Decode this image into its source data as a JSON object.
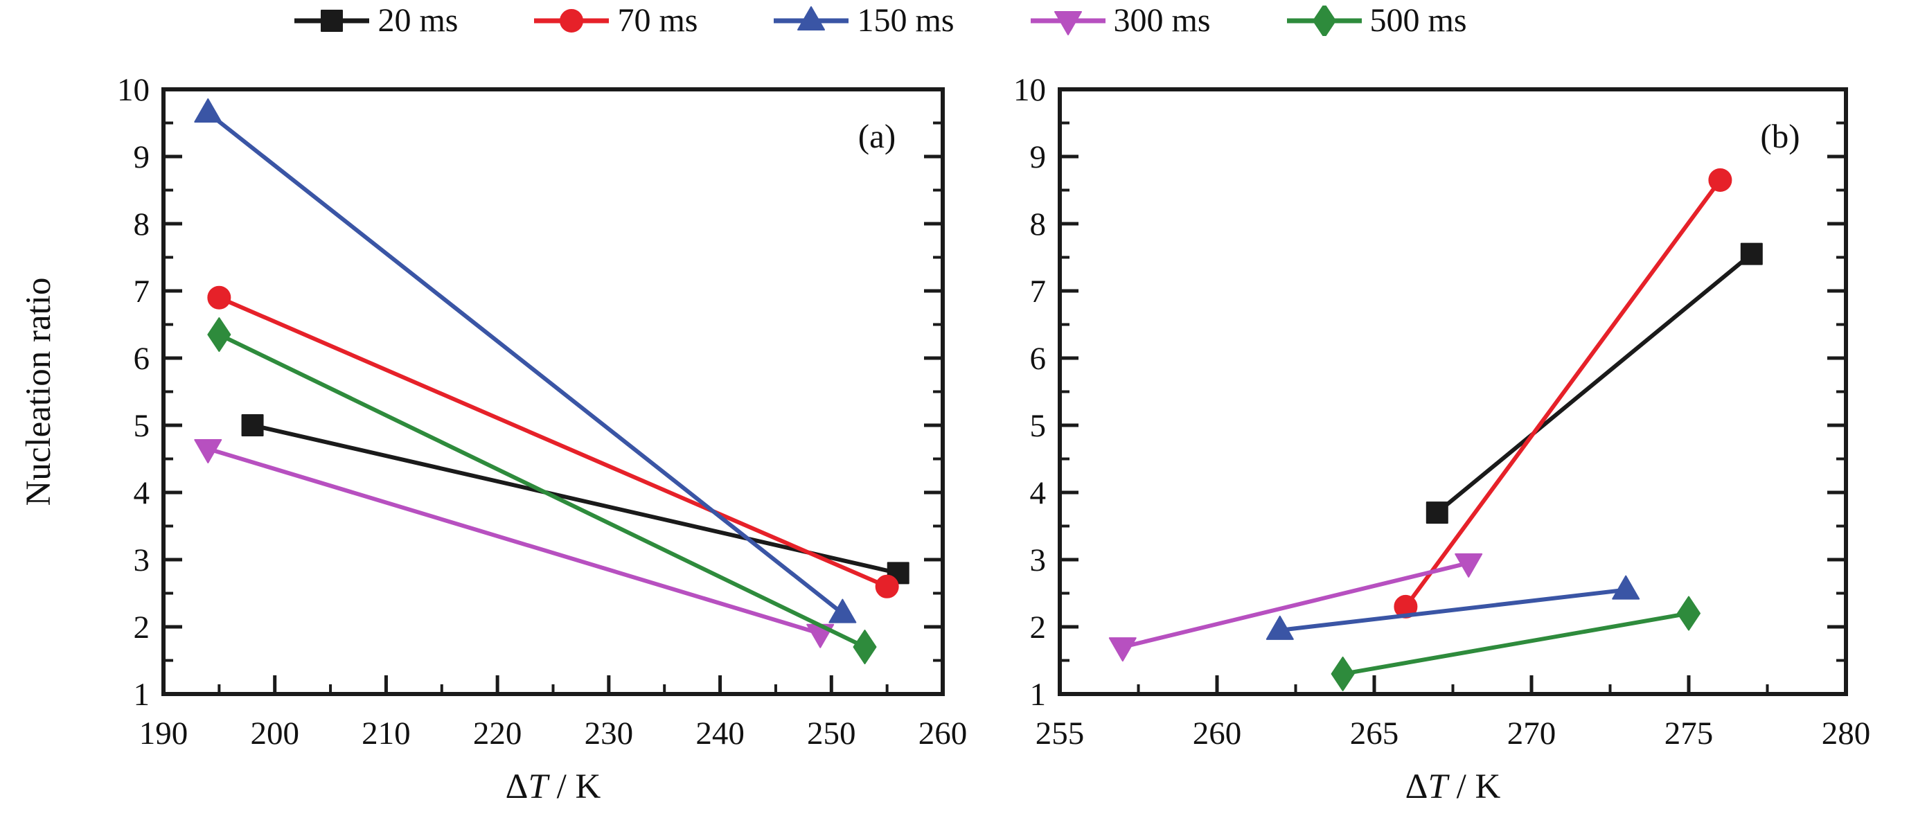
{
  "figure": {
    "background": "#ffffff",
    "axis_color": "#1a1a1a"
  },
  "legend": {
    "items": [
      {
        "label": "20 ms",
        "marker": "square",
        "color": "#1a1a1a"
      },
      {
        "label": "70 ms",
        "marker": "circle",
        "color": "#e62129"
      },
      {
        "label": "150 ms",
        "marker": "triangle-up",
        "color": "#3a55a5"
      },
      {
        "label": "300 ms",
        "marker": "triangle-down",
        "color": "#b750c0"
      },
      {
        "label": "500 ms",
        "marker": "diamond",
        "color": "#2e8b3c"
      }
    ]
  },
  "chart_data": [
    {
      "type": "line",
      "panel_tag": "(a)",
      "xlabel": "ΔT / K",
      "ylabel": "Nucleation ratio",
      "xlim": [
        190,
        260
      ],
      "ylim": [
        1,
        10
      ],
      "x_major_ticks": [
        190,
        200,
        210,
        220,
        230,
        240,
        250,
        260
      ],
      "x_minor_step": 5,
      "y_major_ticks": [
        1,
        2,
        3,
        4,
        5,
        6,
        7,
        8,
        9,
        10
      ],
      "y_minor_step": 0.5,
      "grid": false,
      "series": [
        {
          "name": "20 ms",
          "marker": "square",
          "color": "#1a1a1a",
          "points": [
            [
              198,
              5.0
            ],
            [
              256,
              2.8
            ]
          ]
        },
        {
          "name": "70 ms",
          "marker": "circle",
          "color": "#e62129",
          "points": [
            [
              195,
              6.9
            ],
            [
              255,
              2.6
            ]
          ]
        },
        {
          "name": "150 ms",
          "marker": "triangle-up",
          "color": "#3a55a5",
          "points": [
            [
              194,
              9.65
            ],
            [
              251,
              2.2
            ]
          ]
        },
        {
          "name": "300 ms",
          "marker": "triangle-down",
          "color": "#b750c0",
          "points": [
            [
              194,
              4.65
            ],
            [
              249,
              1.9
            ]
          ]
        },
        {
          "name": "500 ms",
          "marker": "diamond",
          "color": "#2e8b3c",
          "points": [
            [
              195,
              6.35
            ],
            [
              253,
              1.7
            ]
          ]
        }
      ]
    },
    {
      "type": "line",
      "panel_tag": "(b)",
      "xlabel": "ΔT / K",
      "ylabel": "",
      "xlim": [
        255,
        280
      ],
      "ylim": [
        1,
        10
      ],
      "x_major_ticks": [
        255,
        260,
        265,
        270,
        275,
        280
      ],
      "x_minor_step": 2.5,
      "y_major_ticks": [
        1,
        2,
        3,
        4,
        5,
        6,
        7,
        8,
        9,
        10
      ],
      "y_minor_step": 0.5,
      "grid": false,
      "series": [
        {
          "name": "20 ms",
          "marker": "square",
          "color": "#1a1a1a",
          "points": [
            [
              267,
              3.7
            ],
            [
              277,
              7.55
            ]
          ]
        },
        {
          "name": "70 ms",
          "marker": "circle",
          "color": "#e62129",
          "points": [
            [
              266,
              2.3
            ],
            [
              276,
              8.65
            ]
          ]
        },
        {
          "name": "150 ms",
          "marker": "triangle-up",
          "color": "#3a55a5",
          "points": [
            [
              262,
              1.95
            ],
            [
              273,
              2.55
            ]
          ]
        },
        {
          "name": "300 ms",
          "marker": "triangle-down",
          "color": "#b750c0",
          "points": [
            [
              257,
              1.7
            ],
            [
              268,
              2.95
            ]
          ]
        },
        {
          "name": "500 ms",
          "marker": "diamond",
          "color": "#2e8b3c",
          "points": [
            [
              264,
              1.3
            ],
            [
              275,
              2.2
            ]
          ]
        }
      ]
    }
  ]
}
